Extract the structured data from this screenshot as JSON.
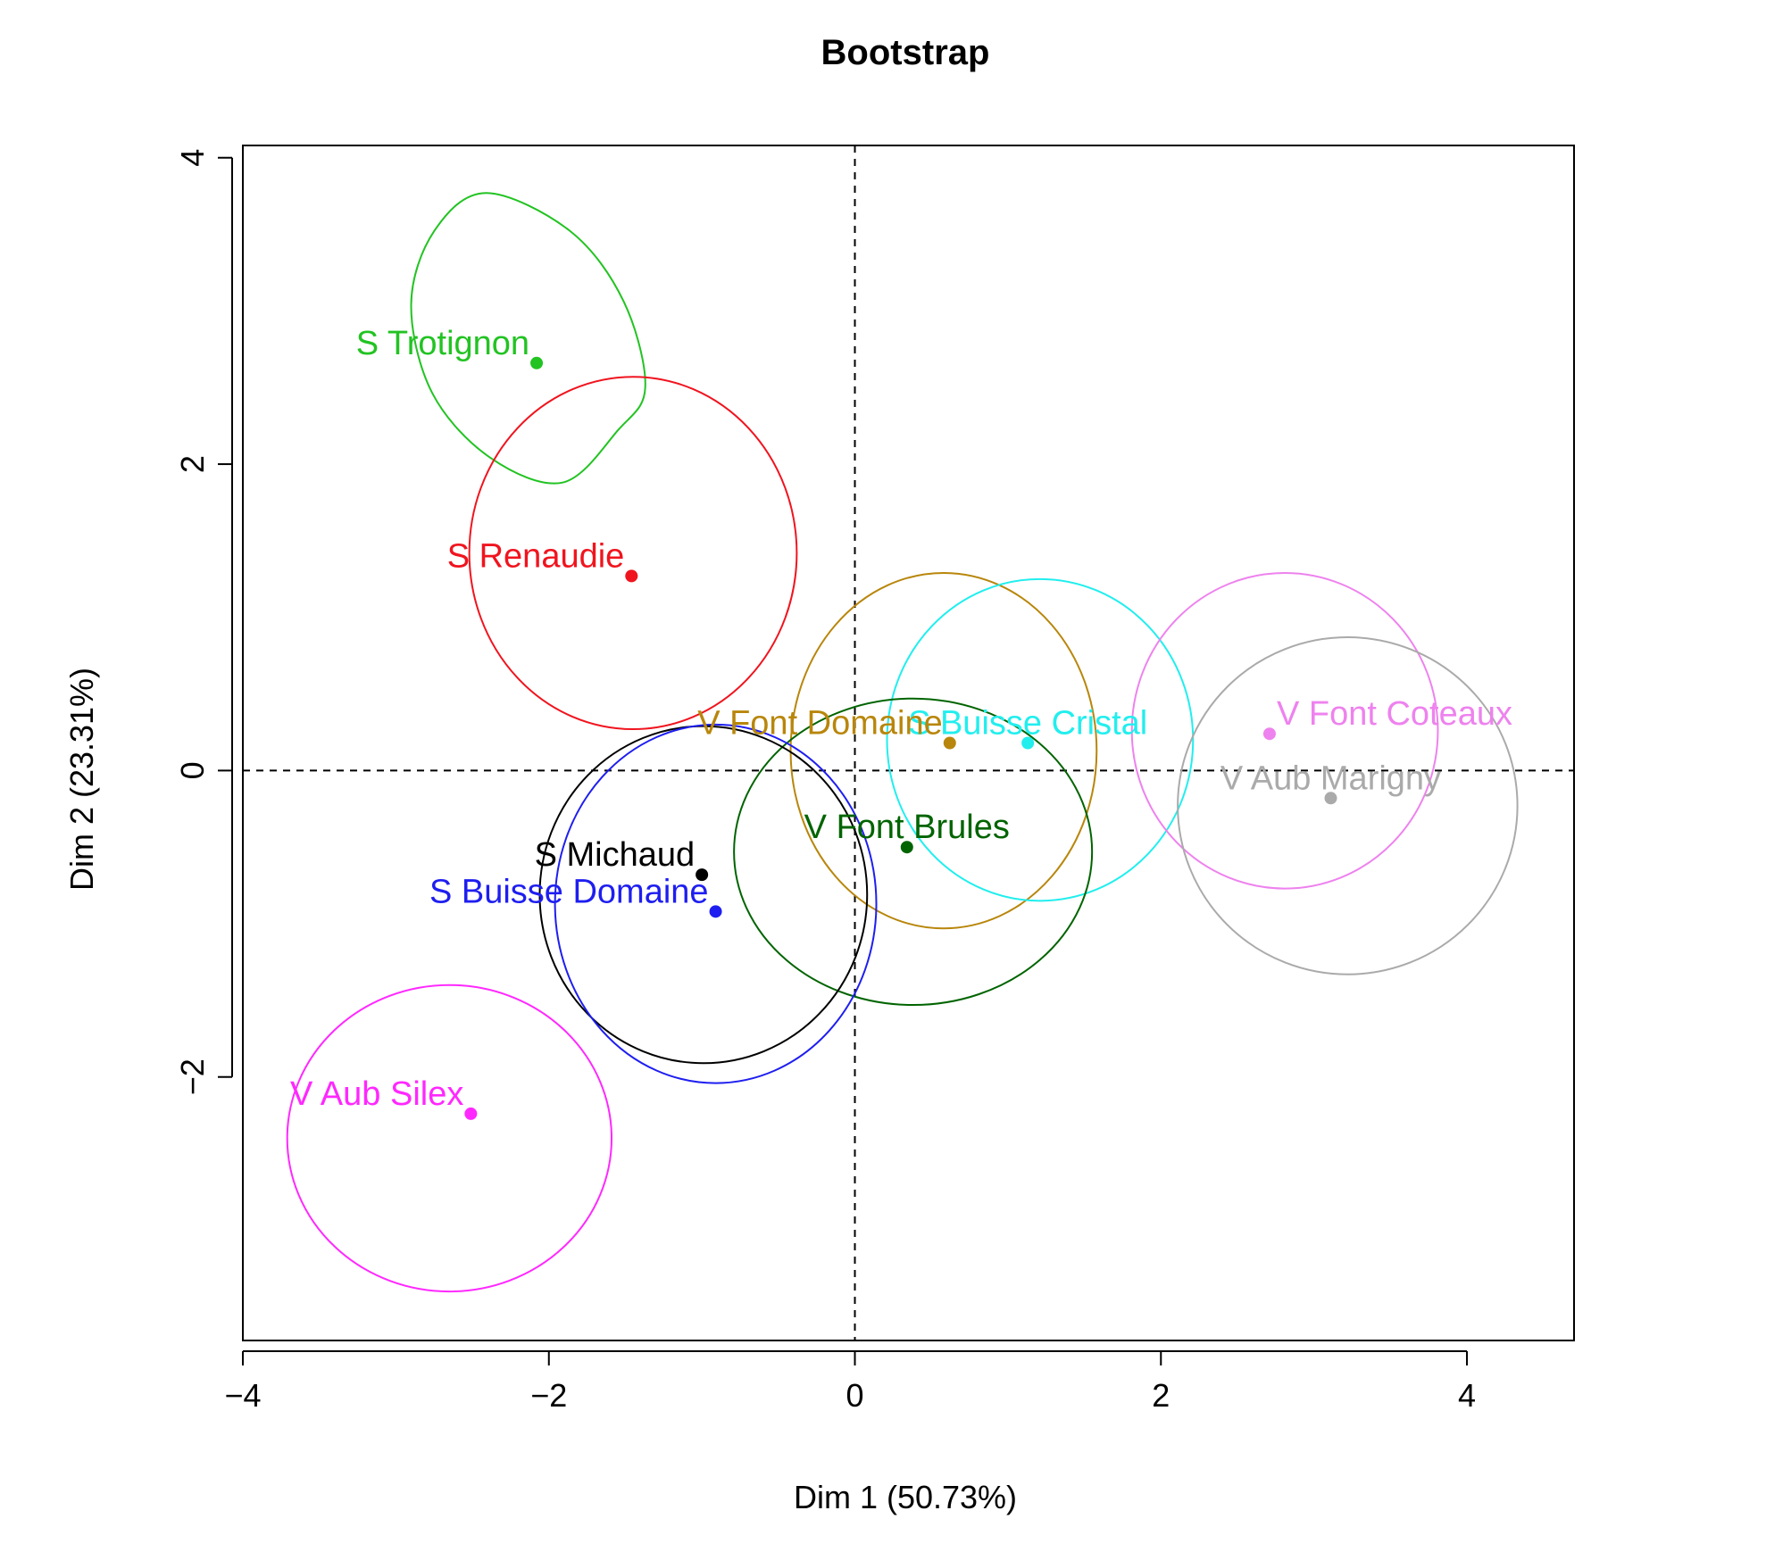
{
  "chart_data": {
    "type": "scatter",
    "title": "Bootstrap",
    "xlabel": "Dim 1 (50.73%)",
    "ylabel": "Dim 2 (23.31%)",
    "xlim": [
      -4.0,
      4.7
    ],
    "ylim": [
      -3.72,
      4.08
    ],
    "xticks": [
      -4,
      -2,
      0,
      2,
      4
    ],
    "yticks": [
      -2,
      0,
      2,
      4
    ],
    "xtick_labels": [
      "−4",
      "−2",
      "0",
      "2",
      "4"
    ],
    "ytick_labels": [
      "−2",
      "0",
      "2",
      "4"
    ],
    "grid": false,
    "reference_lines": [
      {
        "axis": "x",
        "value": 0,
        "style": "dashed"
      },
      {
        "axis": "y",
        "value": 0,
        "style": "dashed"
      }
    ],
    "points": [
      {
        "label": "S Trotignon",
        "color": "#22c322",
        "x": -2.08,
        "y": 2.66,
        "label_anchor": "end"
      },
      {
        "label": "S Renaudie",
        "color": "#f0141e",
        "x": -1.46,
        "y": 1.27,
        "label_anchor": "end"
      },
      {
        "label": "S Buisse Cristal",
        "color": "#22eeee",
        "x": 1.13,
        "y": 0.18,
        "label_anchor": "middle"
      },
      {
        "label": "V Font Coteaux",
        "color": "#ee82ee",
        "x": 2.71,
        "y": 0.24,
        "label_anchor": "start"
      },
      {
        "label": "V Font Domaine",
        "color": "#b8860b",
        "x": 0.62,
        "y": 0.18,
        "label_anchor": "end"
      },
      {
        "label": "V Aub Marigny",
        "color": "#aaaaaa",
        "x": 3.11,
        "y": -0.18,
        "label_anchor": "middle"
      },
      {
        "label": "V Font Brules",
        "color": "#006400",
        "x": 0.34,
        "y": -0.5,
        "label_anchor": "middle"
      },
      {
        "label": "S Michaud",
        "color": "#000000",
        "x": -1.0,
        "y": -0.68,
        "label_anchor": "end"
      },
      {
        "label": "S Buisse Domaine",
        "color": "#1e1ef0",
        "x": -0.91,
        "y": -0.92,
        "label_anchor": "end"
      },
      {
        "label": "V Aub Silex",
        "color": "#ff28ff",
        "x": -2.51,
        "y": -2.24,
        "label_anchor": "end"
      }
    ],
    "ellipses": [
      {
        "name": "S Trotignon",
        "color": "#22c322",
        "boundary": [
          [
            -2.41,
            3.77
          ],
          [
            -2.75,
            3.52
          ],
          [
            -2.9,
            3.04
          ],
          [
            -2.76,
            2.46
          ],
          [
            -2.38,
            2.04
          ],
          [
            -1.91,
            1.88
          ],
          [
            -1.55,
            2.22
          ],
          [
            -1.37,
            2.5
          ],
          [
            -1.51,
            3.06
          ],
          [
            -1.86,
            3.52
          ]
        ]
      },
      {
        "name": "S Renaudie",
        "color": "#f0141e",
        "x": -1.45,
        "y": 1.42,
        "rx": 1.07,
        "ry": 1.15
      },
      {
        "name": "V Font Domaine",
        "color": "#b8860b",
        "x": 0.58,
        "y": 0.13,
        "rx": 1.0,
        "ry": 1.16
      },
      {
        "name": "S Buisse Cristal",
        "color": "#22eeee",
        "x": 1.21,
        "y": 0.2,
        "rx": 1.0,
        "ry": 1.05
      },
      {
        "name": "V Font Coteaux",
        "color": "#ee82ee",
        "x": 2.81,
        "y": 0.26,
        "rx": 1.0,
        "ry": 1.03
      },
      {
        "name": "V Aub Marigny",
        "color": "#aaaaaa",
        "x": 3.22,
        "y": -0.23,
        "rx": 1.11,
        "ry": 1.1
      },
      {
        "name": "V Font Brules",
        "color": "#006400",
        "x": 0.38,
        "y": -0.53,
        "rx": 1.17,
        "ry": 1.0
      },
      {
        "name": "S Michaud",
        "color": "#000000",
        "x": -0.99,
        "y": -0.81,
        "rx": 1.07,
        "ry": 1.1
      },
      {
        "name": "S Buisse Domaine",
        "color": "#1e1ef0",
        "x": -0.91,
        "y": -0.87,
        "rx": 1.05,
        "ry": 1.17
      },
      {
        "name": "V Aub Silex",
        "color": "#ff28ff",
        "x": -2.65,
        "y": -2.4,
        "rx": 1.06,
        "ry": 1.0
      }
    ]
  }
}
